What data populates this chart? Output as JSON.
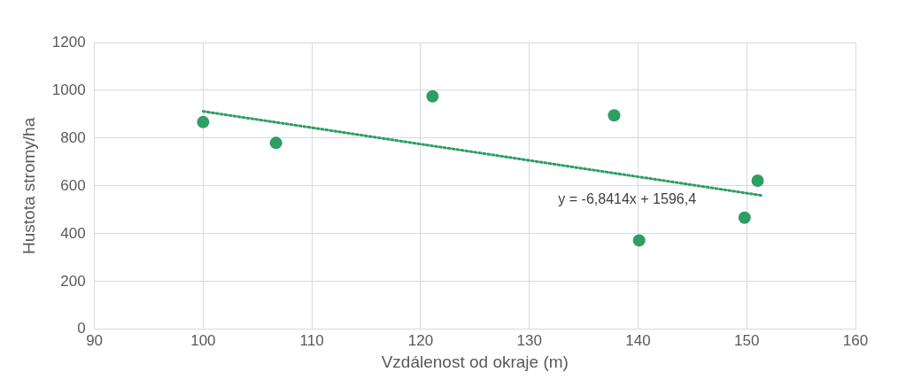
{
  "chart_data": {
    "type": "scatter",
    "xlabel": "Vzdálenost od okraje (m)",
    "ylabel": "Hustota stromy/ha",
    "xlim": [
      90,
      160
    ],
    "xticks": [
      90,
      100,
      110,
      120,
      130,
      140,
      150,
      160
    ],
    "ylim": [
      0,
      1200
    ],
    "yticks": [
      0,
      200,
      400,
      600,
      800,
      1000,
      1200
    ],
    "grid": true,
    "legend": false,
    "marker": "circle",
    "series": [
      {
        "color": "#2e9e62",
        "x": [
          100,
          106.7,
          121.1,
          137.8,
          140.1,
          149.8,
          151.0
        ],
        "values": [
          867,
          780,
          975,
          895,
          372,
          467,
          622
        ]
      },
      {
        "type": "line",
        "color": "#2e9e62",
        "line_style": "dotted",
        "marker": "none",
        "x": [
          100,
          151.3
        ],
        "values": [
          912,
          561
        ]
      }
    ],
    "annotations": [
      "y = -6,8414x + 1596,4"
    ]
  }
}
